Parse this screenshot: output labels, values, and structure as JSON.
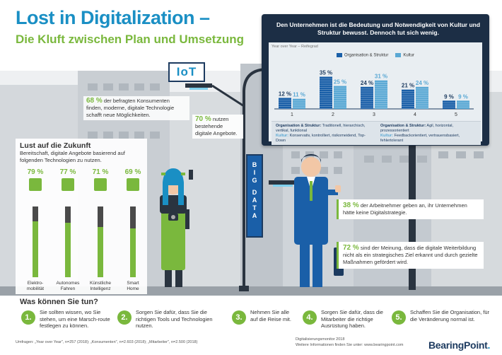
{
  "title": {
    "line1": "Lost in Digitalization –",
    "line2": "Die Kluft zwischen Plan und Umsetzung"
  },
  "billboard": {
    "headline": "Den Unternehmen ist die Bedeutung und Notwendigkeit von Kultur und Struktur bewusst. Dennoch tut sich wenig.",
    "yoy_label": "Year over Year – Reifegrad",
    "legend_1": "Organisation & Struktur",
    "legend_2": "Kultur",
    "colors": {
      "org": "#1a5fa8",
      "kultur": "#5aa8d4"
    },
    "footer_left_title": "Organisation & Struktur:",
    "footer_left_org": "Traditionell, hierarchisch, vertikal, funktional",
    "footer_left_kultur_label": "Kultur:",
    "footer_left_kultur": "Konservativ, kontrolliert, risikomeidend, Top-Down",
    "footer_right_title": "Organisation & Struktur:",
    "footer_right_org": "Agil, horizontal, prozessorientiert",
    "footer_right_kultur_label": "Kultur:",
    "footer_right_kultur": "Feedbackorientiert, vertrauensbasiert, fehlertolerant"
  },
  "chart_data": {
    "type": "bar",
    "title": "Year over Year – Reifegrad",
    "categories": [
      "1",
      "2",
      "3",
      "4",
      "5"
    ],
    "series": [
      {
        "name": "Organisation & Struktur",
        "values": [
          12,
          35,
          24,
          21,
          9
        ],
        "labels": [
          "12 %",
          "35 %",
          "24 %",
          "21 %",
          "9 %"
        ]
      },
      {
        "name": "Kultur",
        "values": [
          11,
          25,
          31,
          24,
          9
        ],
        "labels": [
          "11 %",
          "25 %",
          "31 %",
          "24 %",
          "9 %"
        ]
      }
    ],
    "ylim": [
      0,
      40
    ]
  },
  "stats": {
    "s68_num": "68 %",
    "s68_text": "der befragten Konsumenten finden, moderne, digitale Technologie schafft neue Möglichkeiten.",
    "s70_num": "70 %",
    "s70_text": "nutzen bestehende digitale Angebote.",
    "s38_num": "38 %",
    "s38_text": "der Arbeitnehmer geben an, ihr Unternehmen hätte keine Digitalstrategie.",
    "s72_num": "72 %",
    "s72_text": "sind der Meinung, dass die digitale Weiterbildung nicht als ein strategisches Ziel erkannt und durch gezielte Maßnahmen gefördert wird."
  },
  "lust": {
    "title": "Lust auf die Zukunft",
    "subtitle": "Bereitschaft, digitale Angebote basierend auf folgenden Technologien zu nutzen.",
    "items": [
      {
        "pct": "79 %",
        "value": 79,
        "label": "Elektro-\nmobilität",
        "icon": "plug-icon"
      },
      {
        "pct": "77 %",
        "value": 77,
        "label": "Autonomes\nFahren",
        "icon": "car-icon"
      },
      {
        "pct": "71 %",
        "value": 71,
        "label": "Künstliche\nIntelligenz",
        "icon": "brain-icon"
      },
      {
        "pct": "69 %",
        "value": 69,
        "label": "Smart\nHome",
        "icon": "house-icon"
      }
    ]
  },
  "signs": {
    "iot": "IoT",
    "bigdata": [
      "B",
      "I",
      "G",
      "D",
      "A",
      "T",
      "A"
    ]
  },
  "was": {
    "title": "Was können Sie tun?",
    "steps": [
      {
        "num": "1.",
        "text": "Sie sollten wissen, wo Sie stehen, um eine Marsch-route festlegen zu können."
      },
      {
        "num": "2.",
        "text": "Sorgen Sie dafür, dass Sie die richtigen Tools und Technologien nutzen."
      },
      {
        "num": "3.",
        "text": "Nehmen Sie alle auf die Reise mit."
      },
      {
        "num": "4.",
        "text": "Sorgen Sie dafür, dass die Mitarbeiter die richtige Ausrüstung haben."
      },
      {
        "num": "5.",
        "text": "Schaffen Sie die Organisation, für die Veränderung normal ist."
      }
    ]
  },
  "footer": {
    "footnote": "Umfragen: „Year over Year\", n=257 (2018); „Konsumenten\", n=2.603 (2018); „Mitarbeiter\", n=2.500 (2018)",
    "source1": "Digitalisierungsmonitor 2018",
    "source2": "Weitere Informationen finden Sie unter: www.bearingpoint.com",
    "logo": "BearingPoint",
    "logo_dot": "."
  }
}
